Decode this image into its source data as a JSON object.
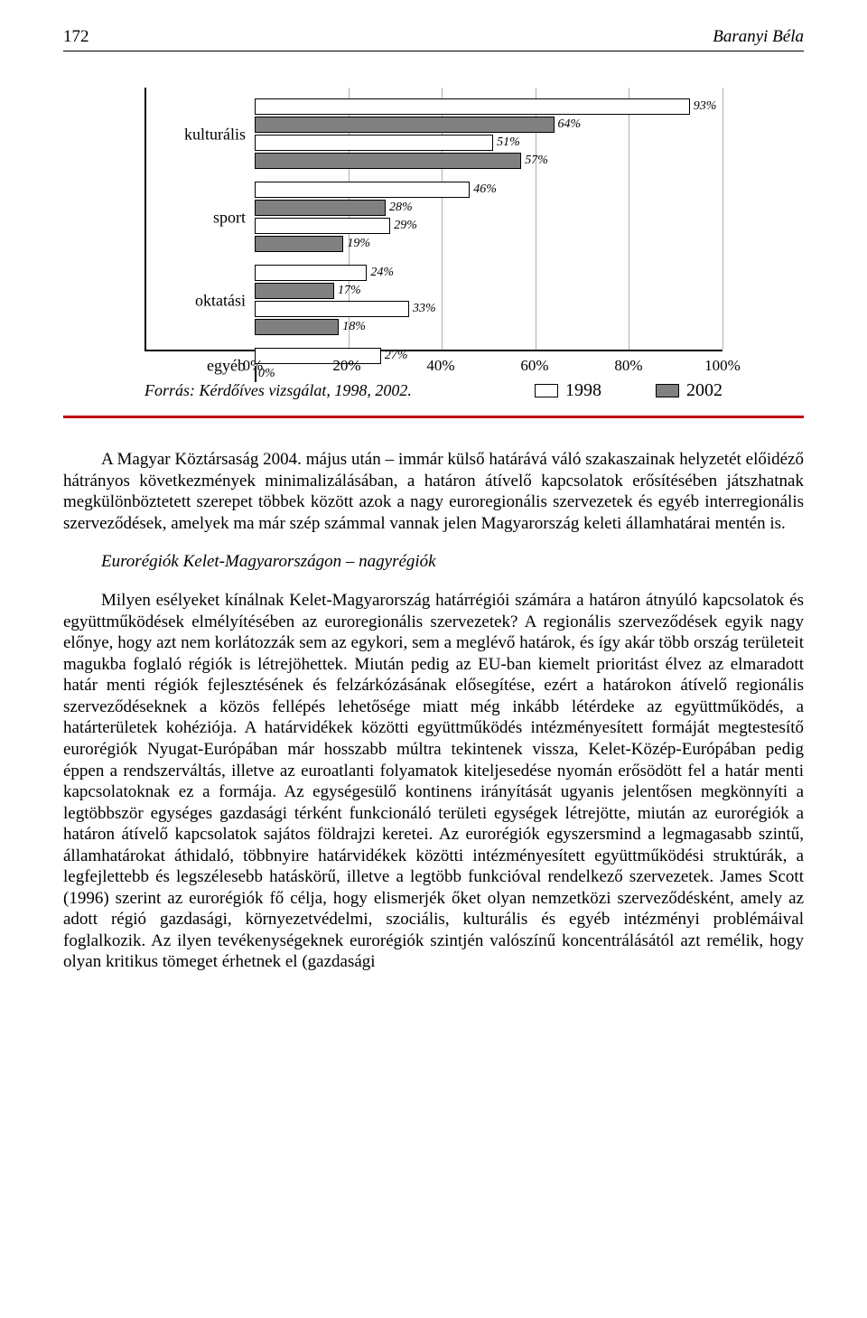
{
  "header": {
    "page_number": "172",
    "author": "Baranyi Béla"
  },
  "chart": {
    "type": "bar",
    "x_min": 0,
    "x_max": 100,
    "x_ticks": [
      "0%",
      "20%",
      "40%",
      "60%",
      "80%",
      "100%"
    ],
    "categories": [
      "kulturális",
      "sport",
      "oktatási",
      "egyéb"
    ],
    "bar_border": "#000000",
    "series_1998": {
      "label": "1998",
      "fill": "#ffffff"
    },
    "series_2002": {
      "label": "2002",
      "fill": "#808080"
    },
    "groups": [
      {
        "cat": "kulturális",
        "bars": [
          {
            "series": "1998",
            "value": 93,
            "label": "93%"
          },
          {
            "series": "2002",
            "value": 64,
            "label": "64%"
          },
          {
            "series": "1998",
            "value": 51,
            "label": "51%"
          },
          {
            "series": "2002",
            "value": 57,
            "label": "57%"
          }
        ]
      },
      {
        "cat": "sport",
        "bars": [
          {
            "series": "1998",
            "value": 46,
            "label": "46%"
          },
          {
            "series": "2002",
            "value": 28,
            "label": "28%"
          },
          {
            "series": "1998",
            "value": 29,
            "label": "29%"
          },
          {
            "series": "2002",
            "value": 19,
            "label": "19%"
          }
        ]
      },
      {
        "cat": "oktatási",
        "bars": [
          {
            "series": "1998",
            "value": 24,
            "label": "24%"
          },
          {
            "series": "2002",
            "value": 17,
            "label": "17%"
          },
          {
            "series": "1998",
            "value": 33,
            "label": "33%"
          },
          {
            "series": "2002",
            "value": 18,
            "label": "18%"
          }
        ]
      },
      {
        "cat": "egyéb",
        "bars": [
          {
            "series": "1998",
            "value": 27,
            "label": "27%"
          },
          {
            "series": "2002",
            "value": 0,
            "label": "0%"
          }
        ]
      }
    ]
  },
  "source": "Forrás: Kérdőíves vizsgálat, 1998, 2002.",
  "paragraph_1": "A Magyar Köztársaság 2004. május után – immár külső határává váló szakaszainak helyzetét előidéző hátrányos következmények minimalizálásában, a határon átívelő kapcsolatok erősítésében játszhatnak megkülönböztetett szerepet többek között azok a nagy euroregionális szervezetek és egyéb interregionális szerveződések, amelyek ma már szép számmal vannak jelen Magyarország keleti államhatárai mentén is.",
  "subheading": "Eurorégiók Kelet-Magyarországon – nagyrégiók",
  "paragraph_2": "Milyen esélyeket kínálnak Kelet-Magyarország határrégiói számára a határon átnyúló kapcsolatok és együttműködések elmélyítésében az euroregionális szervezetek? A regionális szerveződések egyik nagy előnye, hogy azt nem korlátozzák sem az egykori, sem a meglévő határok, és így akár több ország területeit magukba foglaló régiók is létrejöhettek. Miután pedig az EU-ban kiemelt prioritást élvez az elmaradott határ menti régiók fejlesztésének és felzárkózásának elősegítése, ezért a határokon átívelő regionális szerveződéseknek a közös fellépés lehetősége miatt még inkább létérdeke az együttműködés, a határterületek kohéziója. A határvidékek közötti együttműködés intézményesített formáját megtestesítő eurorégiók Nyugat-Európában már hosszabb múltra tekintenek vissza, Kelet-Közép-Európában pedig éppen a rendszerváltás, illetve az euroatlanti folyamatok kiteljesedése nyomán erősödött fel a határ menti kapcsolatoknak ez a formája. Az egységesülő kontinens irányítását ugyanis jelentősen megkönnyíti a legtöbbször egységes gazdasági térként funkcionáló területi egységek létrejötte, miután az eurorégiók a határon átívelő kapcsolatok sajátos földrajzi keretei. Az eurorégiók egyszersmind a legmagasabb szintű, államhatárokat áthidaló, többnyire határvidékek közötti intézményesített együttműködési struktúrák, a legfejlettebb és legszélesebb hatáskörű, illetve a legtöbb funkcióval rendelkező szervezetek. James Scott (1996) szerint az eurorégiók fő célja, hogy elismerjék őket olyan nemzetközi szerveződésként, amely az adott régió gazdasági, környezetvédelmi, szociális, kulturális és egyéb intézményi problémáival foglalkozik. Az ilyen tevékenységeknek eurorégiók szintjén valószínű koncentrálásától azt remélik, hogy olyan kritikus tömeget érhetnek el (gazdasági"
}
